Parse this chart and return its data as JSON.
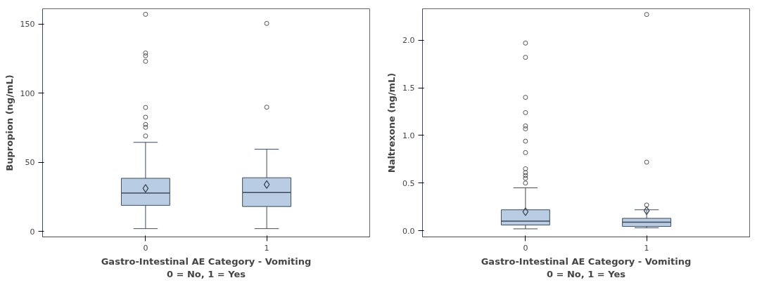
{
  "chart_data": [
    {
      "type": "box",
      "ylabel": "Bupropion (ng/mL)",
      "xlabel": "Gastro-Intestinal AE Category - Vomiting\n0 = No, 1 = Yes",
      "categories": [
        "0",
        "1"
      ],
      "color": "#b8cce4",
      "ylim": [
        -4,
        161
      ],
      "yticks": [
        0,
        50,
        100,
        150
      ],
      "grid": false,
      "boxes": [
        {
          "low": 2,
          "q1": 18.8,
          "median": 27.7,
          "q3": 38.4,
          "high": 64.4,
          "mean": 31.1,
          "outliers": [
            157,
            129,
            127,
            123,
            89.6,
            82.6,
            77.3,
            75.3,
            69
          ]
        },
        {
          "low": 2,
          "q1": 18,
          "median": 28.1,
          "q3": 38.8,
          "high": 59.4,
          "mean": 33.9,
          "outliers": [
            150.4,
            89.8
          ]
        }
      ]
    },
    {
      "type": "box",
      "ylabel": "Naltrexone (ng/mL)",
      "xlabel": "Gastro-Intestinal AE Category - Vomiting\n0 = No, 1 = Yes",
      "categories": [
        "0",
        "1"
      ],
      "color": "#b8cce4",
      "ylim": [
        -0.065,
        2.33
      ],
      "yticks": [
        {
          "value": 0,
          "label": "0.0"
        },
        0.5,
        {
          "value": 1,
          "label": "1.0"
        },
        1.5,
        {
          "value": 2,
          "label": "2.0"
        }
      ],
      "grid": false,
      "boxes": [
        {
          "low": 0.02,
          "q1": 0.06,
          "median": 0.1,
          "q3": 0.22,
          "high": 0.45,
          "mean": 0.2,
          "outliers": [
            1.97,
            1.82,
            1.4,
            1.24,
            1.1,
            1.07,
            0.94,
            0.82,
            0.65,
            0.61,
            0.58,
            0.55,
            0.5
          ]
        },
        {
          "low": 0.03,
          "q1": 0.045,
          "median": 0.09,
          "q3": 0.13,
          "high": 0.22,
          "mean": 0.21,
          "outliers": [
            2.27,
            0.72,
            0.27
          ]
        }
      ]
    }
  ]
}
